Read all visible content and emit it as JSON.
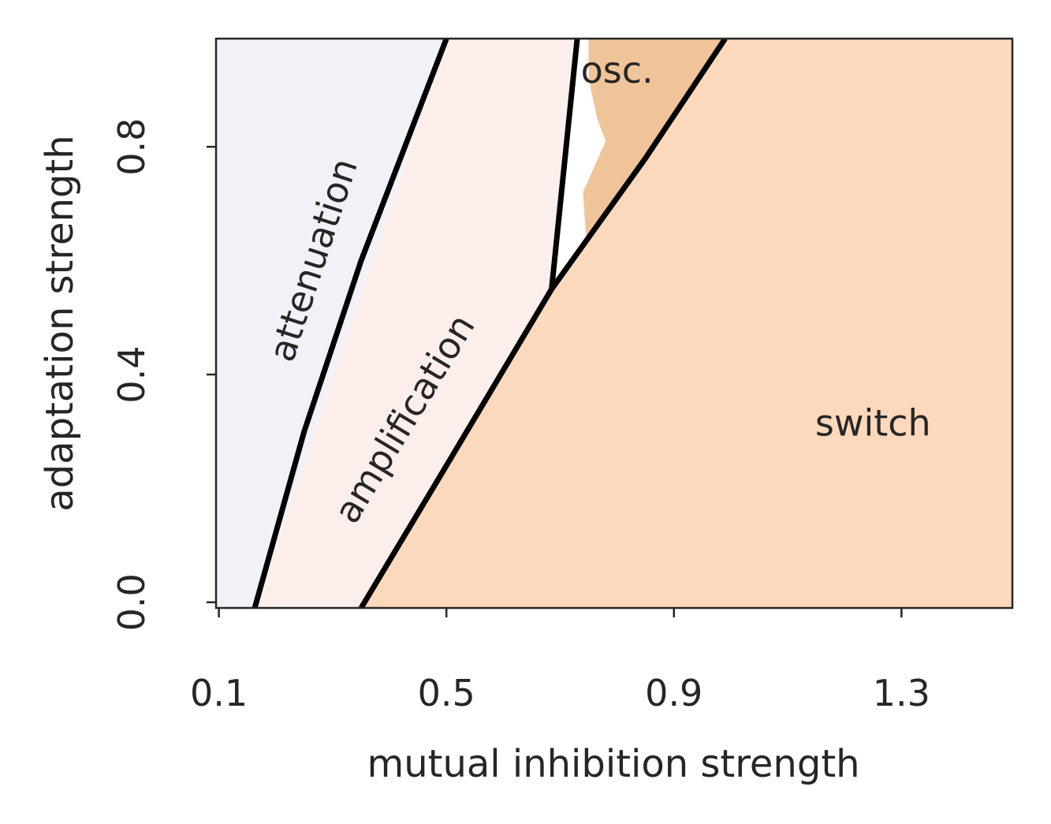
{
  "chart_data": {
    "type": "heatmap",
    "title": "",
    "xlabel": "mutual inhibition strength",
    "ylabel": "adaptation strength",
    "xlim": [
      0.095,
      1.495
    ],
    "ylim": [
      -0.01,
      0.99
    ],
    "xticks": [
      0.1,
      0.5,
      0.9,
      1.3
    ],
    "xtick_labels": [
      "0.1",
      "0.5",
      "0.9",
      "1.3"
    ],
    "yticks": [
      0.0,
      0.4,
      0.8
    ],
    "ytick_labels": [
      "0.0",
      "0.4",
      "0.8"
    ],
    "grid": false,
    "colors": {
      "attenuation": "#f1f2f7",
      "amplification": "#fcefeb",
      "oscillation": "#f0c499",
      "switch": "#fcd9bc",
      "boundary": "#000000"
    },
    "regions": [
      {
        "name": "attenuation",
        "label": "attenuation",
        "polygon": [
          [
            0.095,
            -0.01
          ],
          [
            0.163,
            -0.01
          ],
          [
            0.5,
            0.99
          ],
          [
            0.095,
            0.99
          ]
        ]
      },
      {
        "name": "amplification",
        "label": "amplification",
        "polygon": [
          [
            0.163,
            -0.01
          ],
          [
            0.35,
            -0.01
          ],
          [
            0.685,
            0.55
          ],
          [
            0.73,
            0.99
          ],
          [
            0.5,
            0.99
          ]
        ]
      },
      {
        "name": "oscillation",
        "label": "osc.",
        "polygon": [
          [
            0.75,
            0.99
          ],
          [
            0.75,
            0.92
          ],
          [
            0.765,
            0.85
          ],
          [
            0.78,
            0.81
          ],
          [
            0.74,
            0.72
          ],
          [
            0.745,
            0.65
          ],
          [
            0.75,
            0.62
          ],
          [
            0.87,
            0.8
          ],
          [
            0.99,
            0.99
          ]
        ]
      },
      {
        "name": "switch",
        "label": "switch",
        "polygon": [
          [
            0.35,
            -0.01
          ],
          [
            1.495,
            -0.01
          ],
          [
            1.495,
            0.99
          ],
          [
            0.99,
            0.99
          ],
          [
            0.685,
            0.55
          ]
        ]
      }
    ],
    "boundaries": [
      {
        "name": "attenuation-amplification",
        "points": [
          [
            0.163,
            -0.01
          ],
          [
            0.25,
            0.3
          ],
          [
            0.35,
            0.6
          ],
          [
            0.5,
            0.99
          ]
        ]
      },
      {
        "name": "amplification-switch",
        "points": [
          [
            0.35,
            -0.01
          ],
          [
            0.5,
            0.24
          ],
          [
            0.685,
            0.55
          ],
          [
            0.85,
            0.78
          ],
          [
            0.99,
            0.99
          ]
        ]
      },
      {
        "name": "amplification-oscillation",
        "points": [
          [
            0.685,
            0.55
          ],
          [
            0.73,
            0.99
          ]
        ]
      }
    ],
    "annotations": [
      {
        "text": "attenuation",
        "x": 0.27,
        "y": 0.6,
        "rotation": -72
      },
      {
        "text": "amplification",
        "x": 0.43,
        "y": 0.32,
        "rotation": -59
      },
      {
        "text": "osc.",
        "x": 0.8,
        "y": 0.93,
        "rotation": 0
      },
      {
        "text": "switch",
        "x": 1.25,
        "y": 0.31,
        "rotation": 0
      }
    ]
  }
}
